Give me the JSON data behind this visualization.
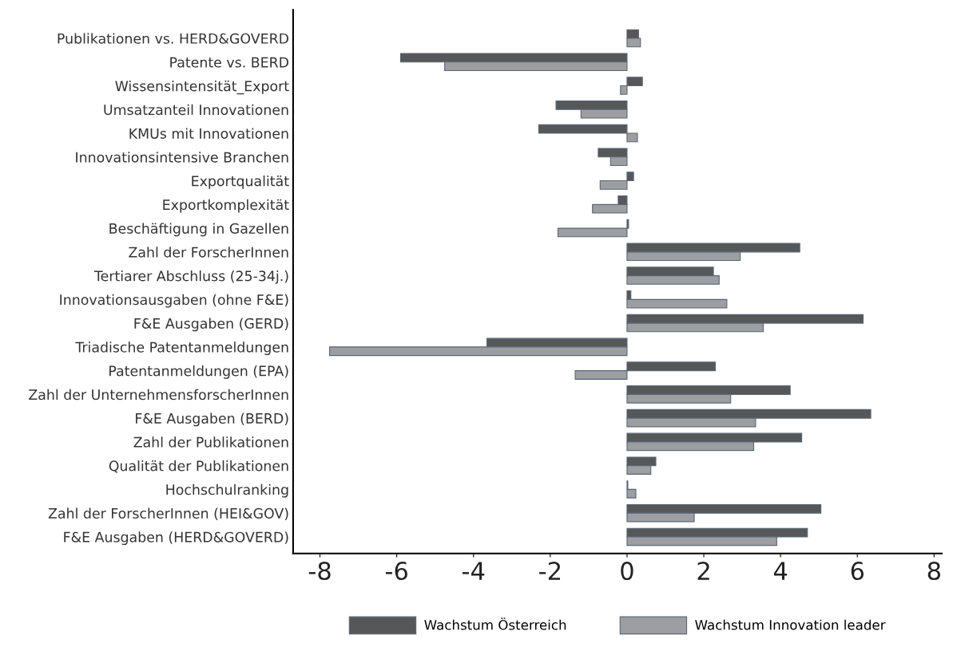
{
  "chart_data": {
    "type": "bar",
    "orientation": "horizontal",
    "categories": [
      "Publikationen vs. HERD&GOVERD",
      "Patente vs. BERD",
      "Wissensintensität_Export",
      "Umsatzanteil Innovationen",
      "KMUs mit Innovationen",
      "Innovationsintensive Branchen",
      "Exportqualität",
      "Exportkomplexität",
      "Beschäftigung in Gazellen",
      "Zahl der ForscherInnen",
      "Tertiarer Abschluss (25-34j.)",
      "Innovationsausgaben (ohne F&E)",
      "F&E Ausgaben (GERD)",
      "Triadische Patentanmeldungen",
      "Patentanmeldungen (EPA)",
      "Zahl der UnternehmensforscherInnen",
      "F&E Ausgaben (BERD)",
      "Zahl der Publikationen",
      "Qualität der Publikationen",
      "Hochschulranking",
      "Zahl der ForscherInnen (HEI&GOV)",
      "F&E Ausgaben (HERD&GOVERD)"
    ],
    "series": [
      {
        "name": "Wachstum Österreich",
        "color": "#555759",
        "values": [
          0.3,
          -5.9,
          0.4,
          -1.85,
          -2.3,
          -0.75,
          0.17,
          -0.23,
          0.04,
          4.5,
          2.25,
          0.1,
          6.15,
          -3.65,
          2.3,
          4.25,
          6.35,
          4.55,
          0.75,
          0.02,
          5.05,
          4.7
        ]
      },
      {
        "name": "Wachstum Innovation leader",
        "color": "#9d9ea2",
        "values": [
          0.35,
          -4.75,
          -0.17,
          -1.2,
          0.27,
          -0.43,
          -0.7,
          -0.9,
          -1.8,
          2.95,
          2.4,
          2.6,
          3.55,
          -7.75,
          -1.35,
          2.7,
          3.35,
          3.3,
          0.62,
          0.23,
          1.75,
          3.9
        ]
      }
    ],
    "xlim": [
      -8.7,
      8.2
    ],
    "xticks": [
      -8,
      -6,
      -4,
      -2,
      0,
      2,
      4,
      6,
      8
    ],
    "grid": false,
    "legend": "bottom"
  }
}
